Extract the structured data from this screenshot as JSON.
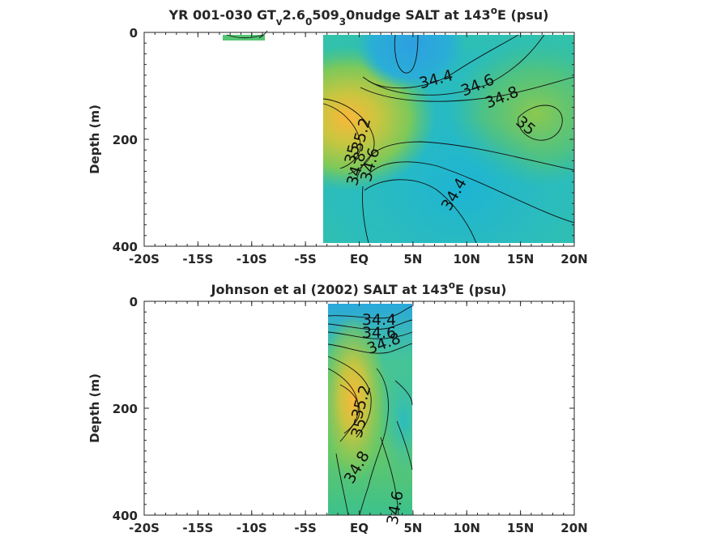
{
  "chart_data": [
    {
      "type": "heatmap",
      "title_parts": [
        "YR 001-030 GT",
        "v",
        "2.6",
        "0",
        "509",
        "3",
        "0nudge SALT at 143",
        "o",
        "E (psu)"
      ],
      "ylabel": "Depth (m)",
      "x_ticks": [
        "-20S",
        "-15S",
        "-10S",
        "-5S",
        "EQ",
        "5N",
        "10N",
        "15N",
        "20N"
      ],
      "y_ticks": [
        "0",
        "200",
        "400"
      ],
      "xlim": [
        -20,
        20
      ],
      "ylim": [
        0,
        400
      ],
      "contour_labels": [
        "34.4",
        "34.6",
        "34.8",
        "35",
        "35.2",
        "35",
        "34.8",
        "34.6",
        "34.4"
      ],
      "colors": {
        "fresh": "#2d9fe0",
        "mid": "#2fc1b0",
        "salty": "#f9b83a"
      }
    },
    {
      "type": "heatmap",
      "title_parts": [
        "Johnson et al (2002) SALT at 143",
        "o",
        "E (psu)"
      ],
      "ylabel": "Depth (m)",
      "x_ticks": [
        "-20S",
        "-15S",
        "-10S",
        "-5S",
        "EQ",
        "5N",
        "10N",
        "15N",
        "20N"
      ],
      "y_ticks": [
        "0",
        "200",
        "400"
      ],
      "xlim": [
        -20,
        20
      ],
      "ylim": [
        0,
        400
      ],
      "contour_labels": [
        "34.4",
        "34.6",
        "34.8",
        "35.2",
        "35",
        "34.8",
        "34.6"
      ],
      "colors": {
        "fresh": "#2d9fe0",
        "mid": "#2fc1b0",
        "salty": "#f9b83a"
      }
    }
  ]
}
